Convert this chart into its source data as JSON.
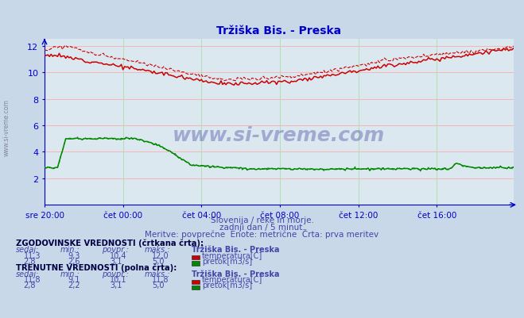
{
  "title": "Tržiška Bis. - Preska",
  "title_color": "#0000cc",
  "bg_color": "#c8d8e8",
  "plot_bg_color": "#dce8f0",
  "grid_color_h": "#ffaaaa",
  "grid_color_v": "#aaddaa",
  "axis_color": "#0000cc",
  "text_color": "#4444aa",
  "xlim": [
    0,
    287
  ],
  "ylim": [
    0,
    12.5
  ],
  "yticks": [
    2,
    4,
    6,
    8,
    10,
    12
  ],
  "xtick_labels": [
    "sre 20:00",
    "čet 00:00",
    "čet 04:00",
    "čet 08:00",
    "čet 12:00",
    "čet 16:00"
  ],
  "xtick_positions": [
    0,
    48,
    96,
    144,
    192,
    240
  ],
  "watermark": "www.si-vreme.com",
  "subtitle1": "Slovenija / reke in morje.",
  "subtitle2": "zadnji dan / 5 minut.",
  "subtitle3": "Meritve: povprečne  Enote: metrične  Črta: prva meritev",
  "table_title1": "ZGODOVINSKE VREDNOSTI (črtkana črta):",
  "table_title2": "TRENUTNE VREDNOSTI (polna črta):",
  "hist_temp_sedaj": "11,3",
  "hist_temp_min": "9,3",
  "hist_temp_povpr": "10,4",
  "hist_temp_maks": "12,0",
  "hist_pretok_sedaj": "2,8",
  "hist_pretok_min": "2,6",
  "hist_pretok_povpr": "3,1",
  "hist_pretok_maks": "5,0",
  "curr_temp_sedaj": "11,8",
  "curr_temp_min": "9,1",
  "curr_temp_povpr": "10,1",
  "curr_temp_maks": "11,8",
  "curr_pretok_sedaj": "2,8",
  "curr_pretok_min": "2,2",
  "curr_pretok_povpr": "3,1",
  "curr_pretok_maks": "5,0",
  "station_name": "Tržiška Bis. - Preska",
  "temp_color": "#cc0000",
  "pretok_color": "#008800",
  "n_points": 288
}
